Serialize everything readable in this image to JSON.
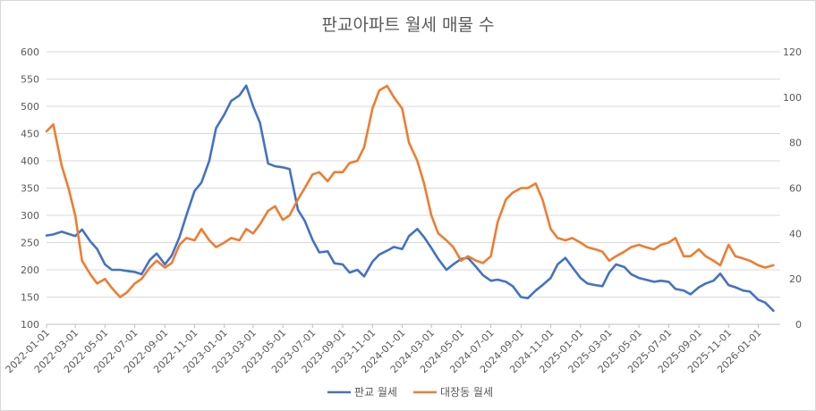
{
  "chart_data": {
    "type": "line",
    "title": "판교아파트 월세 매물 수",
    "x_tick_labels": [
      "2022-01-01",
      "2022-03-01",
      "2022-05-01",
      "2022-07-01",
      "2022-09-01",
      "2022-11-01",
      "2023-01-01",
      "2023-03-01",
      "2023-05-01",
      "2023-07-01",
      "2023-09-01",
      "2023-11-01",
      "2024-01-01",
      "2024-03-01",
      "2024-05-01",
      "2024-07-01",
      "2024-09-01",
      "2024-11-01",
      "2025-01-01",
      "2025-03-01",
      "2025-05-01",
      "2025-07-01",
      "2025-09-01",
      "2025-11-01",
      "2026-01-01"
    ],
    "y_left": {
      "min": 100,
      "max": 600,
      "ticks": [
        100,
        150,
        200,
        250,
        300,
        350,
        400,
        450,
        500,
        550,
        600
      ]
    },
    "y_right": {
      "min": 0,
      "max": 120,
      "ticks": [
        0,
        20,
        40,
        60,
        80,
        100,
        120
      ]
    },
    "series": [
      {
        "name": "판교 월세",
        "axis": "left",
        "color": "#4472C4",
        "dates": [
          "2022-01-01",
          "2022-01-15",
          "2022-02-01",
          "2022-02-15",
          "2022-03-01",
          "2022-03-15",
          "2022-04-01",
          "2022-04-15",
          "2022-05-01",
          "2022-05-15",
          "2022-06-01",
          "2022-06-15",
          "2022-07-01",
          "2022-07-15",
          "2022-08-01",
          "2022-08-15",
          "2022-09-01",
          "2022-09-15",
          "2022-10-01",
          "2022-10-15",
          "2022-11-01",
          "2022-11-15",
          "2022-12-01",
          "2022-12-15",
          "2023-01-01",
          "2023-01-15",
          "2023-02-01",
          "2023-02-15",
          "2023-03-01",
          "2023-03-15",
          "2023-04-01",
          "2023-04-15",
          "2023-05-01",
          "2023-05-15",
          "2023-06-01",
          "2023-06-15",
          "2023-07-01",
          "2023-07-15",
          "2023-08-01",
          "2023-08-15",
          "2023-09-01",
          "2023-09-15",
          "2023-10-01",
          "2023-10-15",
          "2023-11-01",
          "2023-11-15",
          "2023-12-01",
          "2023-12-15",
          "2024-01-01",
          "2024-01-15",
          "2024-02-01",
          "2024-02-15",
          "2024-03-01",
          "2024-03-15",
          "2024-04-01",
          "2024-04-15",
          "2024-05-01",
          "2024-05-15",
          "2024-06-01",
          "2024-06-15",
          "2024-07-01",
          "2024-07-15",
          "2024-08-01",
          "2024-08-15",
          "2024-09-01",
          "2024-09-15",
          "2024-10-01",
          "2024-10-15",
          "2024-11-01",
          "2024-11-15",
          "2024-12-01",
          "2024-12-15",
          "2025-01-01",
          "2025-01-15",
          "2025-02-01",
          "2025-02-15",
          "2025-03-01",
          "2025-03-15",
          "2025-04-01",
          "2025-04-15",
          "2025-05-01",
          "2025-05-15",
          "2025-06-01",
          "2025-06-15",
          "2025-07-01",
          "2025-07-15",
          "2025-08-01",
          "2025-08-15",
          "2025-09-01",
          "2025-09-15",
          "2025-10-01",
          "2025-10-15",
          "2025-11-01",
          "2025-11-15",
          "2025-12-01",
          "2025-12-15",
          "2026-01-01",
          "2026-01-15",
          "2026-02-01"
        ],
        "values": [
          263,
          265,
          270,
          266,
          262,
          274,
          252,
          238,
          210,
          200,
          200,
          198,
          196,
          192,
          218,
          230,
          210,
          226,
          260,
          300,
          345,
          360,
          400,
          460,
          485,
          510,
          520,
          538,
          500,
          470,
          395,
          390,
          388,
          385,
          310,
          290,
          255,
          232,
          234,
          212,
          210,
          195,
          200,
          188,
          215,
          228,
          235,
          242,
          238,
          262,
          275,
          260,
          240,
          220,
          200,
          210,
          220,
          222,
          205,
          190,
          180,
          182,
          178,
          170,
          150,
          148,
          162,
          172,
          185,
          210,
          222,
          205,
          185,
          175,
          172,
          170,
          195,
          210,
          205,
          192,
          185,
          182,
          178,
          180,
          178,
          165,
          162,
          155,
          168,
          175,
          180,
          193,
          172,
          168,
          162,
          160,
          145,
          140,
          125
        ]
      },
      {
        "name": "대장동 월세",
        "axis": "right",
        "color": "#ED7D31",
        "dates": [
          "2022-01-01",
          "2022-01-15",
          "2022-02-01",
          "2022-02-15",
          "2022-03-01",
          "2022-03-15",
          "2022-04-01",
          "2022-04-15",
          "2022-05-01",
          "2022-05-15",
          "2022-06-01",
          "2022-06-15",
          "2022-07-01",
          "2022-07-15",
          "2022-08-01",
          "2022-08-15",
          "2022-09-01",
          "2022-09-15",
          "2022-10-01",
          "2022-10-15",
          "2022-11-01",
          "2022-11-15",
          "2022-12-01",
          "2022-12-15",
          "2023-01-01",
          "2023-01-15",
          "2023-02-01",
          "2023-02-15",
          "2023-03-01",
          "2023-03-15",
          "2023-04-01",
          "2023-04-15",
          "2023-05-01",
          "2023-05-15",
          "2023-06-01",
          "2023-06-15",
          "2023-07-01",
          "2023-07-15",
          "2023-08-01",
          "2023-08-15",
          "2023-09-01",
          "2023-09-15",
          "2023-10-01",
          "2023-10-15",
          "2023-11-01",
          "2023-11-15",
          "2023-12-01",
          "2023-12-15",
          "2024-01-01",
          "2024-01-15",
          "2024-02-01",
          "2024-02-15",
          "2024-03-01",
          "2024-03-15",
          "2024-04-01",
          "2024-04-15",
          "2024-05-01",
          "2024-05-15",
          "2024-06-01",
          "2024-06-15",
          "2024-07-01",
          "2024-07-15",
          "2024-08-01",
          "2024-08-15",
          "2024-09-01",
          "2024-09-15",
          "2024-10-01",
          "2024-10-15",
          "2024-11-01",
          "2024-11-15",
          "2024-12-01",
          "2024-12-15",
          "2025-01-01",
          "2025-01-15",
          "2025-02-01",
          "2025-02-15",
          "2025-03-01",
          "2025-03-15",
          "2025-04-01",
          "2025-04-15",
          "2025-05-01",
          "2025-05-15",
          "2025-06-01",
          "2025-06-15",
          "2025-07-01",
          "2025-07-15",
          "2025-08-01",
          "2025-08-15",
          "2025-09-01",
          "2025-09-15",
          "2025-10-01",
          "2025-10-15",
          "2025-11-01",
          "2025-11-15",
          "2025-12-01",
          "2025-12-15",
          "2026-01-01",
          "2026-01-15",
          "2026-02-01"
        ],
        "values": [
          85,
          88,
          70,
          60,
          48,
          28,
          22,
          18,
          20,
          16,
          12,
          14,
          18,
          20,
          25,
          28,
          25,
          27,
          35,
          38,
          37,
          42,
          37,
          34,
          36,
          38,
          37,
          42,
          40,
          44,
          50,
          52,
          46,
          48,
          55,
          60,
          66,
          67,
          63,
          67,
          67,
          71,
          72,
          78,
          95,
          103,
          105,
          100,
          95,
          80,
          72,
          62,
          48,
          40,
          37,
          34,
          28,
          30,
          28,
          27,
          30,
          45,
          55,
          58,
          60,
          60,
          62,
          55,
          42,
          38,
          37,
          38,
          36,
          34,
          33,
          32,
          28,
          30,
          32,
          34,
          35,
          34,
          33,
          35,
          36,
          38,
          30,
          30,
          33,
          30,
          28,
          26,
          35,
          30,
          29,
          28,
          26,
          25,
          26
        ]
      }
    ],
    "legend": {
      "position": "bottom"
    }
  }
}
